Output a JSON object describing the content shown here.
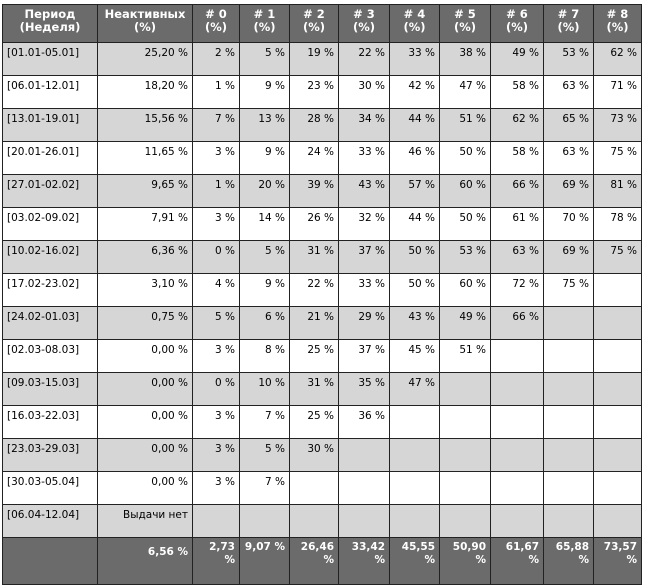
{
  "table": {
    "headers": {
      "period": "Период (Неделя)",
      "inactive": "Неактивных (%)",
      "weeks": [
        "# 0 (%)",
        "# 1 (%)",
        "# 2 (%)",
        "# 3 (%)",
        "# 4 (%)",
        "# 5 (%)",
        "# 6 (%)",
        "# 7 (%)",
        "# 8 (%)"
      ]
    },
    "rows": [
      {
        "period": "[01.01-05.01]",
        "inactive": "25,20 %",
        "cells": [
          "2 %",
          "5 %",
          "19 %",
          "22 %",
          "33 %",
          "38 %",
          "49 %",
          "53 %",
          "62 %"
        ]
      },
      {
        "period": "[06.01-12.01]",
        "inactive": "18,20 %",
        "cells": [
          "1 %",
          "9 %",
          "23 %",
          "30 %",
          "42 %",
          "47 %",
          "58 %",
          "63 %",
          "71 %"
        ]
      },
      {
        "period": "[13.01-19.01]",
        "inactive": "15,56 %",
        "cells": [
          "7 %",
          "13 %",
          "28 %",
          "34 %",
          "44 %",
          "51 %",
          "62 %",
          "65 %",
          "73 %"
        ]
      },
      {
        "period": "[20.01-26.01]",
        "inactive": "11,65 %",
        "cells": [
          "3 %",
          "9 %",
          "24 %",
          "33 %",
          "46 %",
          "50 %",
          "58 %",
          "63 %",
          "75 %"
        ]
      },
      {
        "period": "[27.01-02.02]",
        "inactive": "9,65 %",
        "cells": [
          "1 %",
          "20 %",
          "39 %",
          "43 %",
          "57 %",
          "60 %",
          "66 %",
          "69 %",
          "81 %"
        ]
      },
      {
        "period": "[03.02-09.02]",
        "inactive": "7,91 %",
        "cells": [
          "3 %",
          "14 %",
          "26 %",
          "32 %",
          "44 %",
          "50 %",
          "61 %",
          "70 %",
          "78 %"
        ]
      },
      {
        "period": "[10.02-16.02]",
        "inactive": "6,36 %",
        "cells": [
          "0 %",
          "5 %",
          "31 %",
          "37 %",
          "50 %",
          "53 %",
          "63 %",
          "69 %",
          "75 %"
        ]
      },
      {
        "period": "[17.02-23.02]",
        "inactive": "3,10 %",
        "cells": [
          "4 %",
          "9 %",
          "22 %",
          "33 %",
          "50 %",
          "60 %",
          "72 %",
          "75 %",
          ""
        ]
      },
      {
        "period": "[24.02-01.03]",
        "inactive": "0,75 %",
        "cells": [
          "5 %",
          "6 %",
          "21 %",
          "29 %",
          "43 %",
          "49 %",
          "66 %",
          "",
          ""
        ]
      },
      {
        "period": "[02.03-08.03]",
        "inactive": "0,00 %",
        "cells": [
          "3 %",
          "8 %",
          "25 %",
          "37 %",
          "45 %",
          "51 %",
          "",
          "",
          ""
        ]
      },
      {
        "period": "[09.03-15.03]",
        "inactive": "0,00 %",
        "cells": [
          "0 %",
          "10 %",
          "31 %",
          "35 %",
          "47 %",
          "",
          "",
          "",
          ""
        ]
      },
      {
        "period": "[16.03-22.03]",
        "inactive": "0,00 %",
        "cells": [
          "3 %",
          "7 %",
          "25 %",
          "36 %",
          "",
          "",
          "",
          "",
          ""
        ]
      },
      {
        "period": "[23.03-29.03]",
        "inactive": "0,00 %",
        "cells": [
          "3 %",
          "5 %",
          "30 %",
          "",
          "",
          "",
          "",
          "",
          ""
        ]
      },
      {
        "period": "[30.03-05.04]",
        "inactive": "0,00 %",
        "cells": [
          "3 %",
          "7 %",
          "",
          "",
          "",
          "",
          "",
          "",
          ""
        ]
      },
      {
        "period": "[06.04-12.04]",
        "inactive": "Выдачи нет",
        "cells": [
          "",
          "",
          "",
          "",
          "",
          "",
          "",
          "",
          ""
        ]
      }
    ],
    "totals": {
      "period": "",
      "inactive": "6,56 %",
      "cells": [
        "2,73 %",
        "9,07 %",
        "26,46 %",
        "33,42 %",
        "45,55 %",
        "50,90 %",
        "61,67 %",
        "65,88 %",
        "73,57 %"
      ]
    }
  },
  "colors": {
    "header_bg": "#6b6b6b",
    "header_text": "#ffffff",
    "row_shaded": "#d6d6d6",
    "row_plain": "#ffffff",
    "border": "#222222"
  }
}
